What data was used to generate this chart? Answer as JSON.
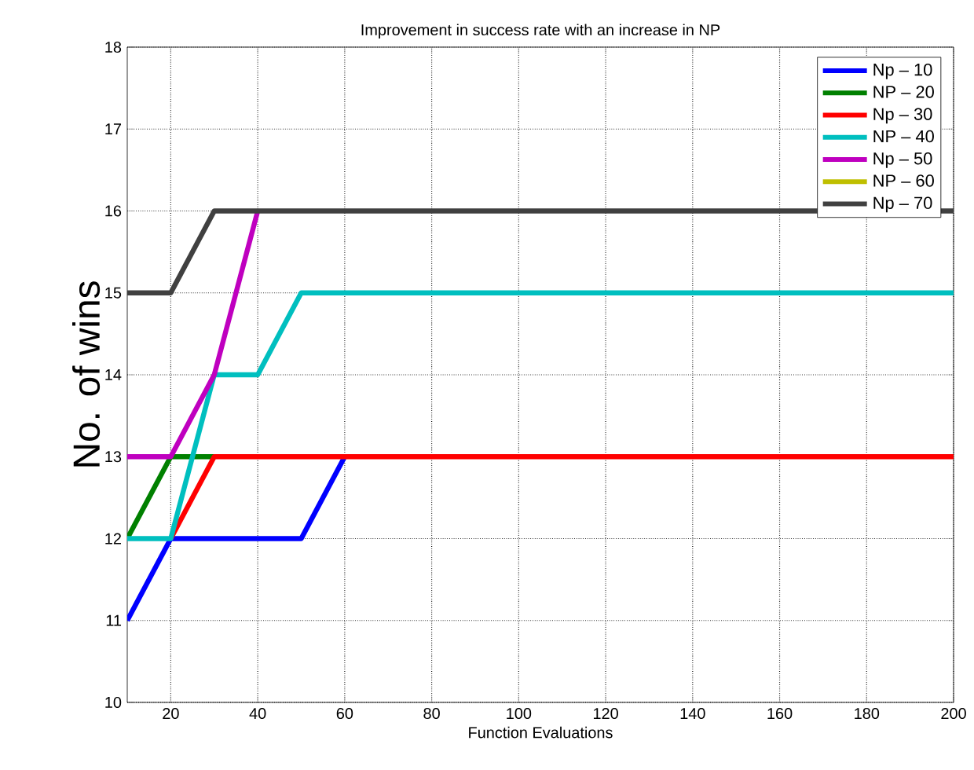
{
  "chart_data": {
    "type": "line",
    "title": "Improvement in success rate with an increase in NP",
    "xlabel": "Function Evaluations",
    "ylabel": "No. of wins",
    "xlim": [
      10,
      200
    ],
    "xticks": [
      20,
      40,
      60,
      80,
      100,
      120,
      140,
      160,
      180,
      200
    ],
    "ylim": [
      10,
      18
    ],
    "yticks": [
      10,
      11,
      12,
      13,
      14,
      15,
      16,
      17,
      18
    ],
    "grid": true,
    "legend": "top right",
    "line_style": "solid",
    "marker": "none",
    "series": [
      {
        "name": "Np – 10",
        "color": "#0000ff",
        "x": [
          10,
          20,
          50,
          60
        ],
        "values": [
          11,
          12,
          12,
          13
        ]
      },
      {
        "name": "NP – 20",
        "color": "#008000",
        "x": [
          10,
          20,
          30
        ],
        "values": [
          12,
          13,
          13
        ]
      },
      {
        "name": "Np – 30",
        "color": "#ff0000",
        "x": [
          20,
          30,
          200
        ],
        "values": [
          12,
          13,
          13
        ]
      },
      {
        "name": "NP – 40",
        "color": "#00bfbf",
        "x": [
          10,
          20,
          30,
          40,
          50,
          200
        ],
        "values": [
          12,
          12,
          14,
          14,
          15,
          15
        ]
      },
      {
        "name": "Np – 50",
        "color": "#bf00bf",
        "x": [
          10,
          20,
          30,
          40
        ],
        "values": [
          13,
          13,
          14,
          16
        ]
      },
      {
        "name": "NP – 60",
        "color": "#bfbf00"
      },
      {
        "name": "Np – 70",
        "color": "#404040",
        "x": [
          10,
          20,
          30,
          200
        ],
        "values": [
          15,
          15,
          16,
          16
        ]
      }
    ]
  }
}
